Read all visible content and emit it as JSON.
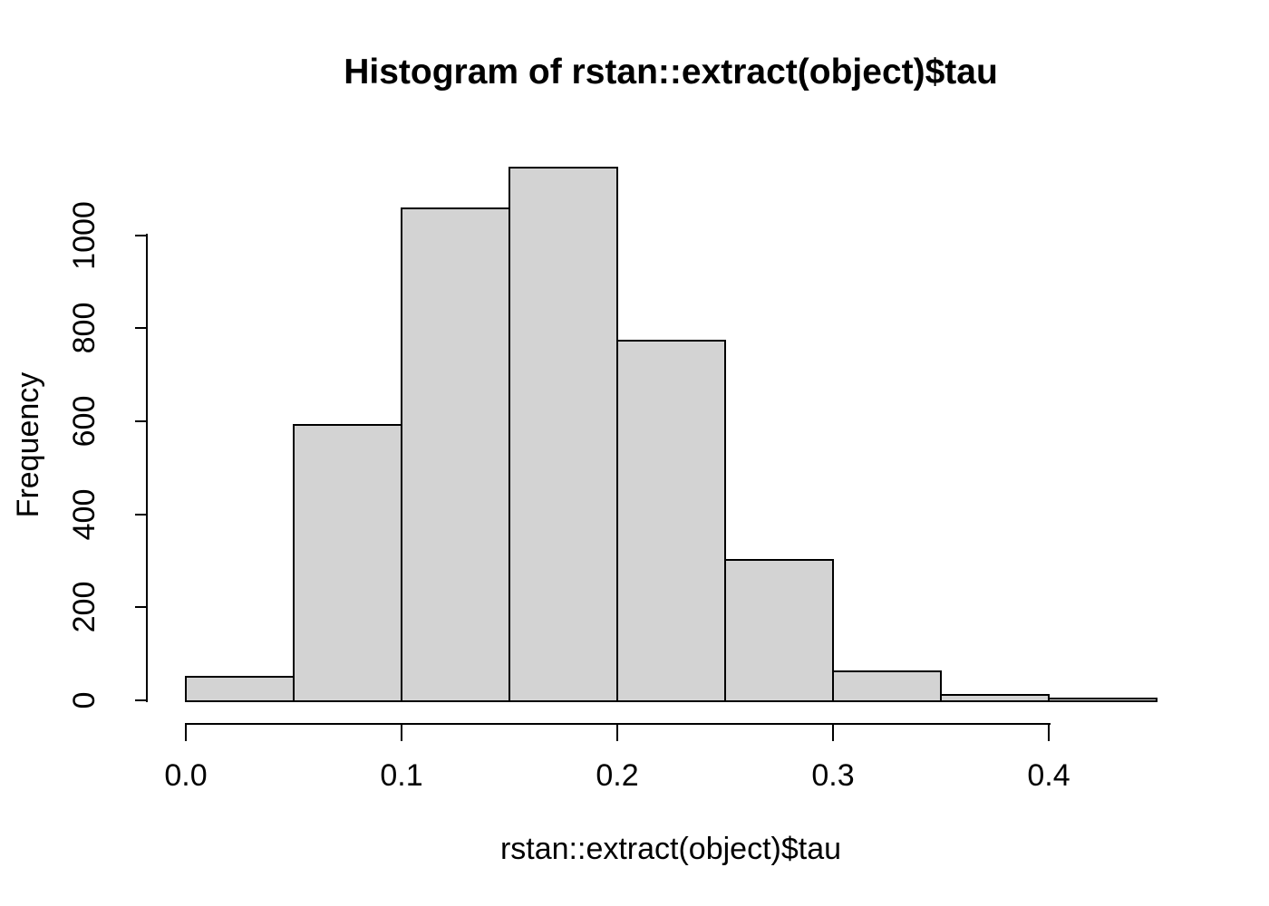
{
  "window": {
    "background": "#ffffff"
  },
  "chart_data": {
    "type": "bar",
    "subtype": "histogram",
    "title": "Histogram of rstan::extract(object)$tau",
    "xlabel": "rstan::extract(object)$tau",
    "ylabel": "Frequency",
    "bin_width": 0.05,
    "bin_edges": [
      0.0,
      0.05,
      0.1,
      0.15,
      0.2,
      0.25,
      0.3,
      0.35,
      0.4,
      0.45
    ],
    "counts": [
      51,
      592,
      1057,
      1146,
      773,
      302,
      63,
      12,
      4
    ],
    "x_ticks": [
      "0.0",
      "0.1",
      "0.2",
      "0.3",
      "0.4"
    ],
    "x_tick_values": [
      0.0,
      0.1,
      0.2,
      0.3,
      0.4
    ],
    "y_ticks": [
      "0",
      "200",
      "400",
      "600",
      "800",
      "1000"
    ],
    "y_tick_values": [
      0,
      200,
      400,
      600,
      800,
      1000
    ],
    "xlim": [
      0.0,
      0.45
    ],
    "ylim": [
      0,
      1150
    ],
    "grid": false,
    "legend": "none",
    "colors": {
      "bar_fill": "#d3d3d3",
      "bar_border": "#000000",
      "axis": "#000000",
      "text": "#000000",
      "background": "#ffffff"
    }
  }
}
